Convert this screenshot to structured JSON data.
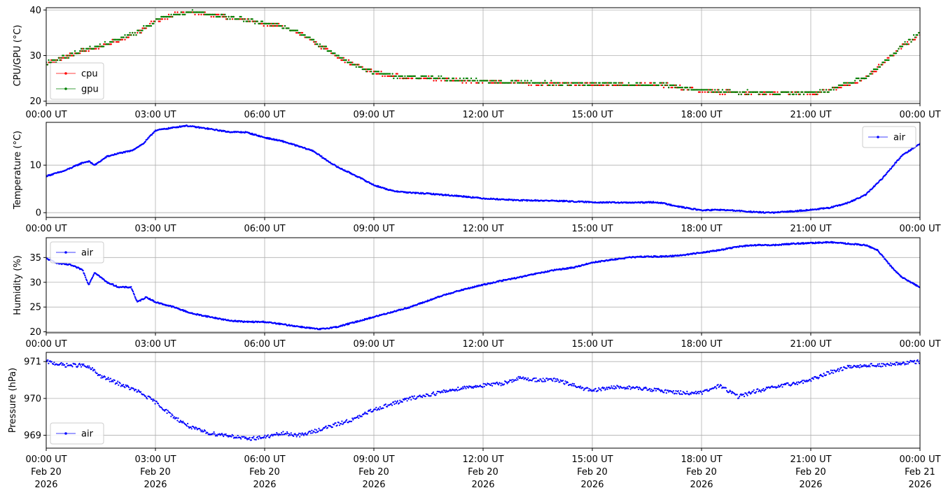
{
  "colors": {
    "cpu": "#ff0000",
    "gpu": "#008000",
    "air": "#0000ff",
    "grid": "#b0b0b0",
    "axes": "#000000"
  },
  "x_tick_labels": [
    "00:00 UT",
    "03:00 UT",
    "06:00 UT",
    "09:00 UT",
    "12:00 UT",
    "15:00 UT",
    "18:00 UT",
    "21:00 UT",
    "00:00 UT"
  ],
  "x_date_lines": {
    "line2": [
      "Feb 20",
      "Feb 20",
      "Feb 20",
      "Feb 20",
      "Feb 20",
      "Feb 20",
      "Feb 20",
      "Feb 20",
      "Feb 21"
    ],
    "line3": [
      "2026",
      "2026",
      "2026",
      "2026",
      "2026",
      "2026",
      "2026",
      "2026",
      "2026"
    ]
  },
  "chart_data": [
    {
      "type": "line",
      "ylabel": "CPU/GPU (°C)",
      "xlim": [
        "2026-02-20T00:00Z",
        "2026-02-21T00:00Z"
      ],
      "ylim": [
        19.5,
        40.5
      ],
      "yticks": [
        20,
        30,
        40
      ],
      "grid": true,
      "legend": "lower-left",
      "series": [
        {
          "name": "cpu",
          "color": "#ff0000",
          "x": [
            "00:00",
            "00:30",
            "01:00",
            "01:30",
            "02:00",
            "02:30",
            "03:00",
            "03:30",
            "04:00",
            "04:30",
            "05:00",
            "05:30",
            "06:00",
            "06:30",
            "07:00",
            "07:30",
            "08:00",
            "08:30",
            "09:00",
            "09:30",
            "10:00",
            "10:30",
            "11:00",
            "11:30",
            "12:00",
            "13:00",
            "14:00",
            "15:00",
            "16:00",
            "17:00",
            "17:30",
            "18:00",
            "18:30",
            "19:00",
            "19:30",
            "20:00",
            "20:30",
            "21:00",
            "21:30",
            "22:00",
            "22:30",
            "23:00",
            "23:30",
            "24:00"
          ],
          "values": [
            28.3,
            29.5,
            31,
            32,
            33.5,
            35,
            37.5,
            39,
            39.5,
            39,
            38.3,
            37.7,
            37,
            36.3,
            34.8,
            32.3,
            29.8,
            27.8,
            26.3,
            25.5,
            25.2,
            25,
            24.8,
            24.5,
            24.3,
            24,
            23.8,
            23.7,
            23.6,
            23.5,
            22.8,
            22.3,
            22,
            21.9,
            21.8,
            21.8,
            21.8,
            21.8,
            22.3,
            23.7,
            25,
            28.3,
            32,
            34.8
          ]
        },
        {
          "name": "gpu",
          "color": "#008000",
          "x": [
            "00:00",
            "00:30",
            "01:00",
            "01:30",
            "02:00",
            "02:30",
            "03:00",
            "03:30",
            "04:00",
            "04:30",
            "05:00",
            "05:30",
            "06:00",
            "06:30",
            "07:00",
            "07:30",
            "08:00",
            "08:30",
            "09:00",
            "09:30",
            "10:00",
            "10:30",
            "11:00",
            "11:30",
            "12:00",
            "13:00",
            "14:00",
            "15:00",
            "16:00",
            "17:00",
            "17:30",
            "18:00",
            "18:30",
            "19:00",
            "19:30",
            "20:00",
            "20:30",
            "21:00",
            "21:30",
            "22:00",
            "22:30",
            "23:00",
            "23:30",
            "24:00"
          ],
          "values": [
            28.4,
            29.6,
            31.1,
            32.1,
            33.6,
            35.1,
            37.6,
            39.1,
            39.6,
            39.1,
            38.4,
            37.8,
            37.1,
            36.4,
            34.9,
            32.4,
            29.9,
            27.9,
            26.4,
            25.6,
            25.3,
            25.1,
            24.9,
            24.6,
            24.4,
            24.1,
            23.9,
            23.8,
            23.7,
            23.6,
            22.9,
            22.4,
            22.1,
            22,
            21.9,
            21.9,
            21.9,
            21.9,
            22.4,
            23.8,
            25.1,
            28.4,
            32.1,
            34.9
          ]
        }
      ]
    },
    {
      "type": "line",
      "ylabel": "Temperature (°C)",
      "xlim": [
        "2026-02-20T00:00Z",
        "2026-02-21T00:00Z"
      ],
      "ylim": [
        -1,
        19
      ],
      "yticks": [
        0,
        10
      ],
      "grid": true,
      "legend": "upper-right",
      "series": [
        {
          "name": "air",
          "color": "#0000ff",
          "x": [
            "00:00",
            "00:30",
            "01:00",
            "01:10",
            "01:20",
            "01:40",
            "02:00",
            "02:20",
            "02:40",
            "03:00",
            "03:30",
            "03:50",
            "04:30",
            "05:00",
            "05:30",
            "06:00",
            "06:30",
            "07:00",
            "07:20",
            "07:40",
            "08:00",
            "08:30",
            "09:00",
            "09:30",
            "10:00",
            "10:30",
            "11:00",
            "11:30",
            "12:00",
            "12:30",
            "13:00",
            "14:00",
            "15:00",
            "16:00",
            "16:45",
            "17:00",
            "17:30",
            "18:00",
            "18:30",
            "19:00",
            "19:30",
            "20:00",
            "20:30",
            "21:00",
            "21:30",
            "22:00",
            "22:30",
            "23:00",
            "23:30",
            "24:00"
          ],
          "values": [
            7.7,
            8.8,
            10.5,
            10.8,
            10,
            11.8,
            12.5,
            13,
            14.5,
            17.3,
            17.9,
            18.3,
            17.6,
            17,
            16.9,
            15.8,
            15,
            13.8,
            13,
            11.2,
            9.6,
            7.8,
            5.8,
            4.6,
            4.2,
            4,
            3.7,
            3.4,
            3,
            2.8,
            2.6,
            2.5,
            2.2,
            2.1,
            2.2,
            1.9,
            1.1,
            0.5,
            0.6,
            0.4,
            0.1,
            0,
            0.3,
            0.6,
            1,
            2,
            3.7,
            7.5,
            12,
            14.5
          ]
        }
      ]
    },
    {
      "type": "line",
      "ylabel": "Humidity (%)",
      "xlim": [
        "2026-02-20T00:00Z",
        "2026-02-21T00:00Z"
      ],
      "ylim": [
        19.8,
        39
      ],
      "yticks": [
        20,
        25,
        30,
        35
      ],
      "grid": true,
      "legend": "upper-left",
      "series": [
        {
          "name": "air",
          "color": "#0000ff",
          "x": [
            "00:00",
            "00:20",
            "00:40",
            "01:00",
            "01:10",
            "01:20",
            "01:40",
            "02:00",
            "02:20",
            "02:30",
            "02:45",
            "03:00",
            "03:30",
            "04:00",
            "04:30",
            "05:00",
            "05:30",
            "06:00",
            "06:30",
            "07:00",
            "07:30",
            "08:00",
            "08:30",
            "09:00",
            "09:30",
            "10:00",
            "10:30",
            "11:00",
            "11:30",
            "12:00",
            "12:30",
            "13:00",
            "13:30",
            "14:00",
            "14:30",
            "15:00",
            "15:30",
            "16:00",
            "16:30",
            "17:00",
            "17:30",
            "18:00",
            "18:30",
            "19:00",
            "19:30",
            "20:00",
            "20:30",
            "21:00",
            "21:30",
            "22:00",
            "22:30",
            "22:50",
            "23:10",
            "23:30",
            "24:00"
          ],
          "values": [
            34.8,
            33.8,
            33.5,
            32.5,
            29.5,
            32,
            30,
            29,
            29,
            26,
            27,
            26,
            25,
            23.7,
            23,
            22.3,
            22,
            22,
            21.5,
            21,
            20.5,
            21,
            22,
            23,
            24,
            25,
            26.3,
            27.6,
            28.6,
            29.5,
            30.3,
            31,
            31.8,
            32.5,
            33,
            34,
            34.5,
            35,
            35.2,
            35.2,
            35.5,
            36,
            36.5,
            37.2,
            37.5,
            37.5,
            37.8,
            37.9,
            38.1,
            37.8,
            37.5,
            36.5,
            33.5,
            31,
            29
          ]
        }
      ]
    },
    {
      "type": "scatter",
      "ylabel": "Pressure (hPa)",
      "xlim": [
        "2026-02-20T00:00Z",
        "2026-02-21T00:00Z"
      ],
      "ylim": [
        968.65,
        971.25
      ],
      "yticks": [
        969,
        970,
        971
      ],
      "grid": true,
      "legend": "lower-left",
      "series": [
        {
          "name": "air",
          "color": "#0000ff",
          "x": [
            "00:00",
            "00:30",
            "01:00",
            "01:15",
            "01:30",
            "02:00",
            "02:30",
            "03:00",
            "03:30",
            "04:00",
            "04:30",
            "05:00",
            "05:30",
            "06:00",
            "06:30",
            "07:00",
            "07:30",
            "08:00",
            "08:30",
            "09:00",
            "09:30",
            "10:00",
            "10:30",
            "11:00",
            "11:30",
            "12:00",
            "12:30",
            "13:00",
            "13:30",
            "14:00",
            "14:30",
            "15:00",
            "15:30",
            "16:00",
            "16:30",
            "17:00",
            "17:30",
            "18:00",
            "18:30",
            "19:00",
            "19:30",
            "20:00",
            "20:30",
            "21:00",
            "21:30",
            "22:00",
            "22:30",
            "23:00",
            "23:30",
            "24:00"
          ],
          "values": [
            971,
            970.9,
            970.9,
            970.8,
            970.6,
            970.4,
            970.2,
            969.9,
            969.5,
            969.2,
            969.05,
            969,
            968.9,
            968.95,
            969.05,
            969,
            969.15,
            969.3,
            969.45,
            969.7,
            969.85,
            970,
            970.1,
            970.2,
            970.3,
            970.35,
            970.4,
            970.55,
            970.5,
            970.5,
            970.35,
            970.2,
            970.3,
            970.3,
            970.25,
            970.2,
            970.15,
            970.15,
            970.35,
            970.05,
            970.2,
            970.3,
            970.4,
            970.5,
            970.7,
            970.85,
            970.9,
            970.9,
            970.95,
            971
          ]
        }
      ]
    }
  ]
}
